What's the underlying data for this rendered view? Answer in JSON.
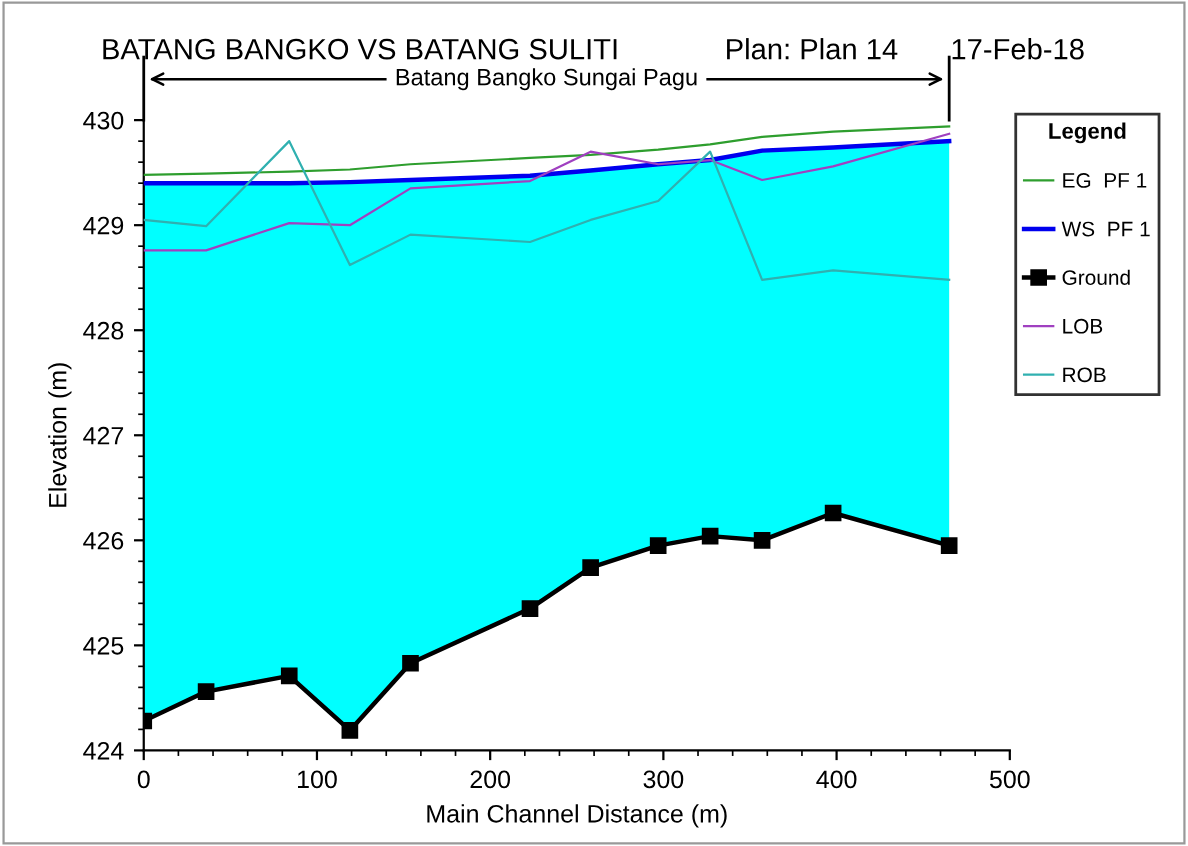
{
  "chart_data": {
    "type": "line",
    "title": "BATANG BANGKO VS BATANG SULITI",
    "xlabel": "Main Channel Distance (m)",
    "ylabel": "Elevation (m)",
    "legend_title": "Legend",
    "annotations": [
      "Plan: Plan 14",
      "17-Feb-18",
      "Batang Bangko Sungai Pagu"
    ],
    "x": [
      0,
      36,
      84,
      119,
      154,
      223,
      258,
      297,
      327,
      357,
      398,
      465
    ],
    "series": [
      {
        "name": "EG  PF 1",
        "color": "#2e9e2e",
        "line_style": "solid",
        "values": [
          429.48,
          429.49,
          429.51,
          429.53,
          429.58,
          429.64,
          429.67,
          429.72,
          429.77,
          429.84,
          429.89,
          429.94
        ]
      },
      {
        "name": "WS  PF 1",
        "type": "area",
        "color": "#0000ee",
        "values": [
          429.4,
          429.4,
          429.4,
          429.41,
          429.43,
          429.47,
          429.52,
          429.58,
          429.62,
          429.71,
          429.74,
          429.8
        ]
      },
      {
        "name": "Ground",
        "color": "#000000",
        "marker": "square",
        "values": [
          424.28,
          424.56,
          424.71,
          424.19,
          424.83,
          425.35,
          425.74,
          425.95,
          426.04,
          426.0,
          426.26,
          425.95
        ]
      },
      {
        "name": "LOB",
        "color": "#a040c0",
        "values": [
          428.76,
          428.76,
          429.02,
          429.0,
          429.35,
          429.42,
          429.7,
          429.58,
          429.62,
          429.43,
          429.56,
          429.87
        ]
      },
      {
        "name": "ROB",
        "color": "#30b0b0",
        "values": [
          429.05,
          428.99,
          429.8,
          428.62,
          428.91,
          428.84,
          429.05,
          429.23,
          429.7,
          428.48,
          428.57,
          428.48
        ]
      }
    ],
    "xlim": [
      0,
      500
    ],
    "xticks": [
      0,
      100,
      200,
      300,
      400,
      500
    ],
    "ylim": [
      424,
      430
    ],
    "yticks": [
      424,
      425,
      426,
      427,
      428,
      429,
      430
    ],
    "grid": false,
    "legend": "right"
  }
}
